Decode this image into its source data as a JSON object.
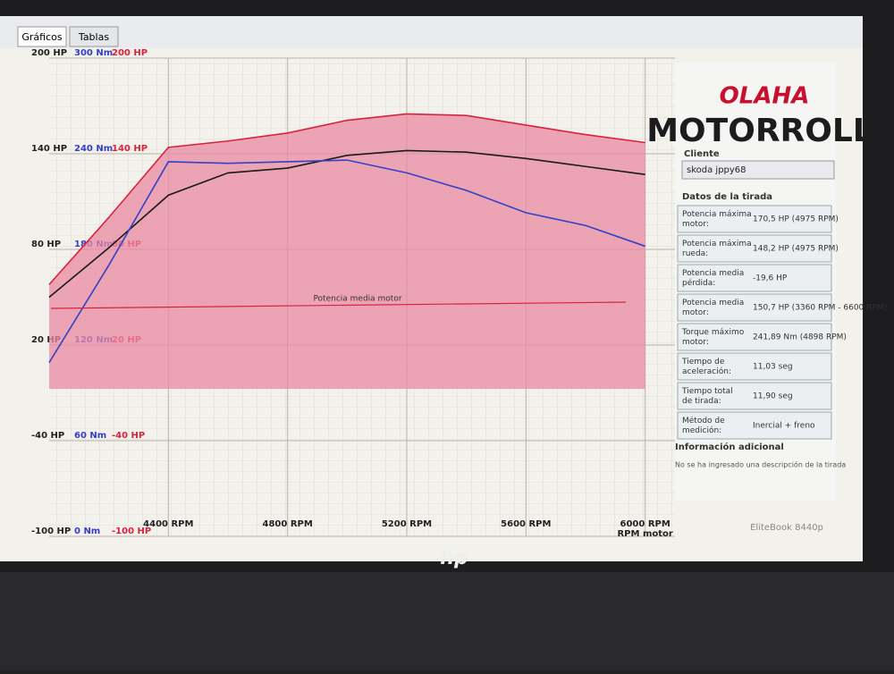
{
  "tabs": [
    "Gráficos",
    "Tablas"
  ],
  "chart_data": {
    "type": "line",
    "x": [
      4000,
      4200,
      4400,
      4600,
      4800,
      5000,
      5200,
      5400,
      5600,
      5800,
      6000
    ],
    "xlim": [
      4000,
      6100
    ],
    "xticks": [
      {
        "value": 4400,
        "label": "4400 RPM"
      },
      {
        "value": 4800,
        "label": "4800 RPM"
      },
      {
        "value": 5200,
        "label": "5200 RPM"
      },
      {
        "value": 5600,
        "label": "5600 RPM"
      },
      {
        "value": 6000,
        "label": "6000 RPM"
      }
    ],
    "xlabel": "RPM motor",
    "ylim": [
      -100,
      200
    ],
    "yticks": [
      {
        "value": 200,
        "label": "200 HP"
      },
      {
        "value": 140,
        "label": "140 HP"
      },
      {
        "value": 80,
        "label": "80 HP"
      },
      {
        "value": 20,
        "label": "20 HP"
      },
      {
        "value": -40,
        "label": "-40 HP"
      },
      {
        "value": -100,
        "label": "-100 HP"
      }
    ],
    "y2lim": [
      0,
      300
    ],
    "y2ticks": [
      {
        "value": 300,
        "label": "300 Nm"
      },
      {
        "value": 240,
        "label": "240 Nm"
      },
      {
        "value": 180,
        "label": "180 Nm"
      },
      {
        "value": 120,
        "label": "120 Nm"
      },
      {
        "value": 60,
        "label": "60 Nm"
      },
      {
        "value": 0,
        "label": "0 Nm"
      }
    ],
    "y3ticks": [
      {
        "value": 200,
        "label": "200 HP"
      },
      {
        "value": 140,
        "label": "140 HP"
      },
      {
        "value": 80,
        "label": "80 HP"
      },
      {
        "value": 20,
        "label": "20 HP"
      },
      {
        "value": -40,
        "label": "-40 HP"
      },
      {
        "value": -100,
        "label": "-100 HP"
      }
    ],
    "annotation": "Potencia media motor",
    "grid": true,
    "series": [
      {
        "color": "#d8233a",
        "fill": "#e98aa3",
        "values": [
          58,
          100,
          144,
          148,
          153,
          161,
          165,
          164,
          158,
          152,
          147
        ]
      },
      {
        "color": "#1a1a1a",
        "values": [
          50,
          81,
          114,
          128,
          131,
          139,
          142,
          141,
          137,
          132,
          127
        ]
      },
      {
        "color": "#3340c8",
        "axis": "y2",
        "values": [
          109,
          170,
          235,
          234,
          235,
          236,
          228,
          217,
          203,
          195,
          182
        ]
      }
    ]
  },
  "panel": {
    "logo_top": "OLAHA",
    "logo": "MOTORROLL",
    "client_label": "Cliente",
    "client": "skoda jppy68",
    "section": "Datos de la tirada",
    "rows": [
      [
        "Potencia máxima motor:",
        "170,5 HP (4975 RPM)"
      ],
      [
        "Potencia máxima rueda:",
        "148,2 HP (4975 RPM)"
      ],
      [
        "Potencia media pérdida:",
        "-19,6 HP"
      ],
      [
        "Potencia media motor:",
        "150,7 HP (3360 RPM - 6600 RPM)"
      ],
      [
        "Torque máximo motor:",
        "241,89 Nm (4898 RPM)"
      ],
      [
        "Tiempo de aceleración:",
        "11,03 seg"
      ],
      [
        "Tiempo total de tirada:",
        "11,90 seg"
      ],
      [
        "Método de medición:",
        "Inercial + freno"
      ]
    ],
    "info_title": "Información adicional",
    "info": "No se ha ingresado una descripción de la tirada"
  },
  "device": {
    "brand": "hp",
    "model": "EliteBook 8440p"
  }
}
